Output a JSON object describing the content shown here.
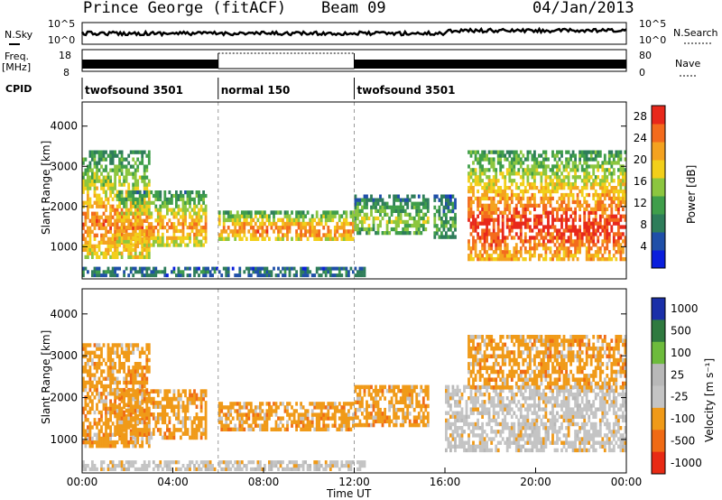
{
  "header": {
    "station": "Prince George (fitACF)",
    "beam": "Beam 09",
    "date": "04/Jan/2013"
  },
  "panels": {
    "nsky_label": "N.Sky",
    "nsearch_label": "N.Search",
    "freq_label_1": "Freq.",
    "freq_label_2": "[MHz]",
    "nave_label": "Nave",
    "cpid_label": "CPID",
    "nsky_ticks": [
      "10^5",
      "10^0"
    ],
    "nsearch_ticks": [
      "10^5",
      "10^0"
    ],
    "freq_ticks": [
      "18",
      "8"
    ],
    "nave_ticks": [
      "80",
      "0"
    ]
  },
  "cpid": [
    {
      "label": "twofsound 3501",
      "start_hour": 0,
      "end_hour": 6
    },
    {
      "label": "normal 150",
      "start_hour": 6,
      "end_hour": 12
    },
    {
      "label": "twofsound 3501",
      "start_hour": 12,
      "end_hour": 24
    }
  ],
  "colors": {
    "power": [
      "#0a1edc",
      "#1f4fa8",
      "#2e7d5a",
      "#3f9e4a",
      "#8cc63f",
      "#f2cf1a",
      "#f4a21f",
      "#f36b1d",
      "#e8281b"
    ],
    "velocity": [
      "#1a2fa8",
      "#2f7a3f",
      "#6dbb3c",
      "#b8b8b8",
      "#c4c4c4",
      "#f09a18",
      "#f06a14",
      "#e82a14"
    ]
  },
  "chart_data": [
    {
      "type": "heatmap",
      "name": "power",
      "ylabel": "Slant Range [km]",
      "xlim": [
        0,
        24
      ],
      "ylim": [
        200,
        4600
      ],
      "yticks": [
        1000,
        2000,
        3000,
        4000
      ],
      "ytick_labels": [
        "1000",
        "2000",
        "3000",
        "4000"
      ],
      "colorbar_label": "Power [dB]",
      "colorbar_ticks": [
        "4",
        "8",
        "12",
        "16",
        "20",
        "24",
        "28"
      ],
      "colorbar_range": [
        0,
        30
      ],
      "echo_regions": [
        {
          "start_hour": 0.0,
          "end_hour": 3.0,
          "min_km": 700,
          "max_km": 3400,
          "peak_dB": 26
        },
        {
          "start_hour": 1.5,
          "end_hour": 5.5,
          "min_km": 1000,
          "max_km": 2400,
          "peak_dB": 24
        },
        {
          "start_hour": 6.0,
          "end_hour": 12.0,
          "min_km": 1150,
          "max_km": 1900,
          "peak_dB": 26
        },
        {
          "start_hour": 12.0,
          "end_hour": 15.3,
          "min_km": 1300,
          "max_km": 2300,
          "peak_dB": 16
        },
        {
          "start_hour": 15.5,
          "end_hour": 16.5,
          "min_km": 1200,
          "max_km": 2300,
          "peak_dB": 12
        },
        {
          "start_hour": 17.0,
          "end_hour": 24.0,
          "min_km": 650,
          "max_km": 3400,
          "peak_dB": 30
        },
        {
          "start_hour": 0.0,
          "end_hour": 12.5,
          "min_km": 250,
          "max_km": 500,
          "peak_dB": 8
        }
      ]
    },
    {
      "type": "heatmap",
      "name": "velocity",
      "ylabel": "Slant Range [km]",
      "xlabel": "Time UT",
      "xlim": [
        0,
        24
      ],
      "ylim": [
        200,
        4600
      ],
      "xticks": [
        "00:00",
        "04:00",
        "08:00",
        "12:00",
        "16:00",
        "20:00",
        "00:00"
      ],
      "yticks": [
        1000,
        2000,
        3000,
        4000
      ],
      "ytick_labels": [
        "1000",
        "2000",
        "3000",
        "4000"
      ],
      "colorbar_label": "Velocity [m s⁻¹]",
      "colorbar_ticks": [
        "1000",
        "500",
        "100",
        "25",
        "-25",
        "-100",
        "-500",
        "-1000"
      ],
      "echo_regions": [
        {
          "start_hour": 0.0,
          "end_hour": 3.0,
          "min_km": 800,
          "max_km": 3300,
          "velocity_ms": -150
        },
        {
          "start_hour": 1.5,
          "end_hour": 5.5,
          "min_km": 1000,
          "max_km": 2200,
          "velocity_ms": -200
        },
        {
          "start_hour": 6.0,
          "end_hour": 12.0,
          "min_km": 1200,
          "max_km": 1900,
          "velocity_ms": -150
        },
        {
          "start_hour": 12.0,
          "end_hour": 15.3,
          "min_km": 1300,
          "max_km": 2300,
          "velocity_ms": -100
        },
        {
          "start_hour": 16.0,
          "end_hour": 24.0,
          "min_km": 700,
          "max_km": 2300,
          "velocity_ms": 0
        },
        {
          "start_hour": 17.0,
          "end_hour": 24.0,
          "min_km": 2200,
          "max_km": 3500,
          "velocity_ms": -250
        },
        {
          "start_hour": 0.0,
          "end_hour": 12.5,
          "min_km": 250,
          "max_km": 500,
          "velocity_ms": -50
        }
      ]
    }
  ]
}
